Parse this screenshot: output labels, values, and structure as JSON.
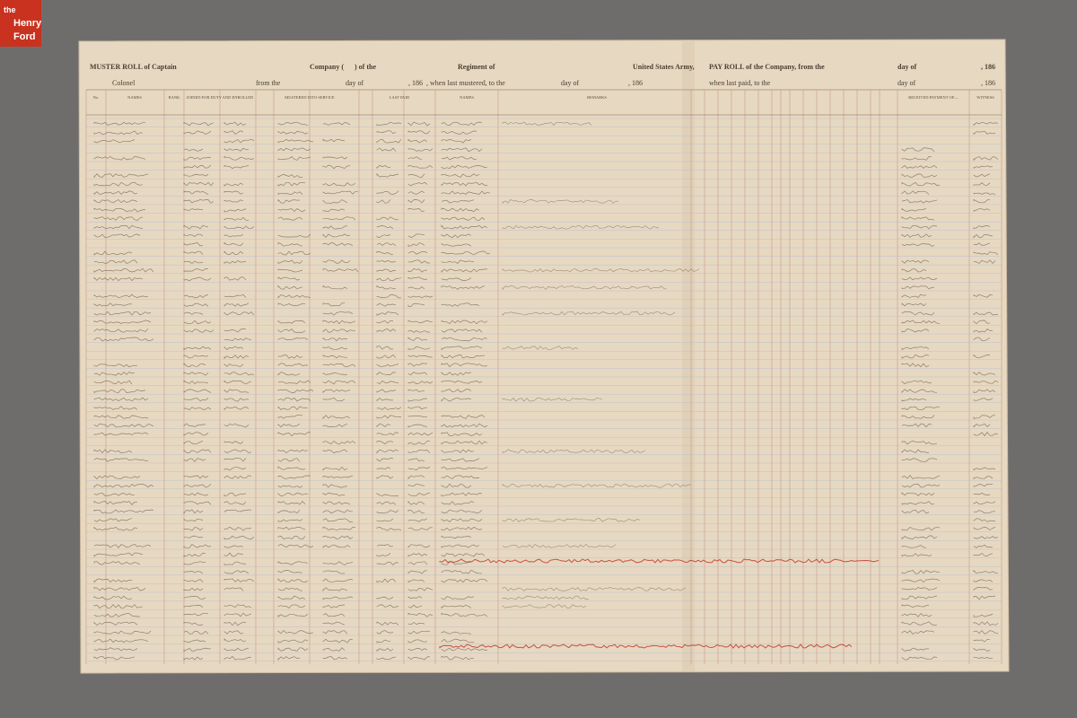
{
  "logo": {
    "line1": "the",
    "line2": "Henry",
    "line3": "Ford"
  },
  "header": {
    "line1": [
      "MUSTER ROLL of Captain",
      "Company (",
      ") of the",
      "Regiment of",
      "United States Army,",
      "PAY ROLL of the Company, from the",
      "day of",
      ", 186"
    ],
    "line2": [
      "Colonel",
      "from the",
      "day of",
      ", 186",
      ", when last mustered, to the",
      "day of",
      ", 186",
      "when last paid, to the",
      "day of",
      ", 186"
    ]
  },
  "columns": [
    "No.",
    "NAMES",
    "RANK",
    "JOINED FOR DUTY AND ENROLLED",
    "MUSTERED INTO SERVICE",
    "LAST PAID",
    "NAMES",
    "REMARKS",
    "RECEIVED PAYMENT OF—",
    "WITNESS"
  ]
}
